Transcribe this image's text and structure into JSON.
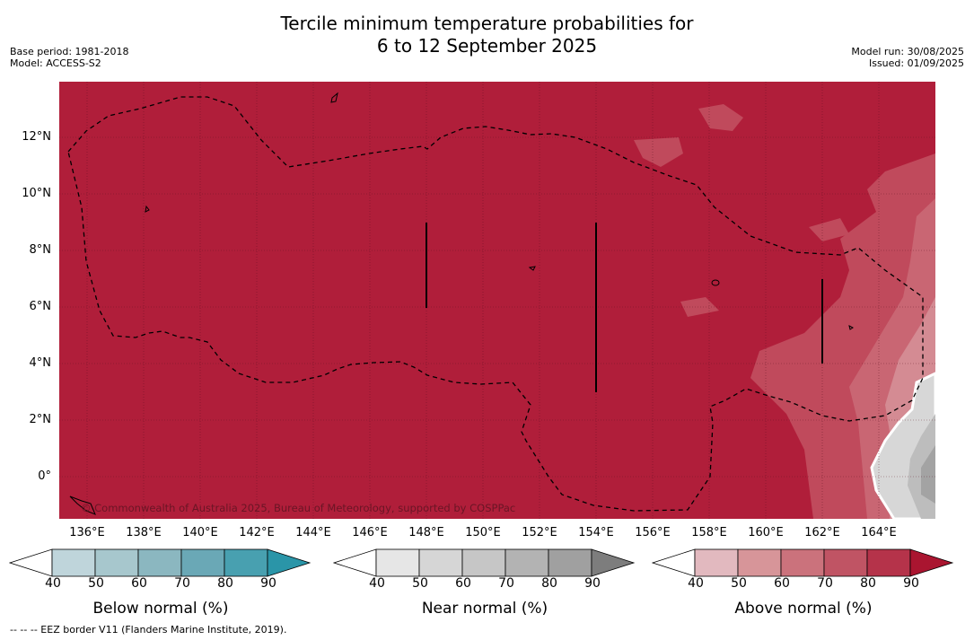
{
  "header": {
    "title_line1": "Tercile minimum temperature probabilities for",
    "title_line2": "6 to 12 September 2025",
    "base_period": "Base period: 1981-2018",
    "model": "Model: ACCESS-S2",
    "model_run": "Model run: 30/08/2025",
    "issued": "Issued: 01/09/2025"
  },
  "map": {
    "lat_labels": [
      "12°N",
      "10°N",
      "8°N",
      "6°N",
      "4°N",
      "2°N",
      "0°"
    ],
    "lon_labels": [
      "136°E",
      "138°E",
      "140°E",
      "142°E",
      "144°E",
      "146°E",
      "148°E",
      "150°E",
      "152°E",
      "154°E",
      "156°E",
      "158°E",
      "160°E",
      "162°E",
      "164°E"
    ],
    "copyright": "© Commonwealth of Australia 2025, Bureau of Meteorology, supported by COSPPac",
    "base_color": "#b01e3a"
  },
  "colorbars": [
    {
      "name": "below",
      "title": "Below normal (%)",
      "ticks": [
        "40",
        "50",
        "60",
        "70",
        "80",
        "90"
      ],
      "colors": [
        "#ffffff",
        "#bfd5db",
        "#a7c7cd",
        "#8bb7c0",
        "#6aa8b6",
        "#48a0b0",
        "#2a95a8"
      ]
    },
    {
      "name": "near",
      "title": "Near normal (%)",
      "ticks": [
        "40",
        "50",
        "60",
        "70",
        "80",
        "90"
      ],
      "colors": [
        "#ffffff",
        "#e6e6e6",
        "#d6d6d6",
        "#c6c6c6",
        "#b3b3b3",
        "#a0a0a0",
        "#7d7d7d"
      ]
    },
    {
      "name": "above",
      "title": "Above normal (%)",
      "ticks": [
        "40",
        "50",
        "60",
        "70",
        "80",
        "90"
      ],
      "colors": [
        "#ffffff",
        "#e2b9bf",
        "#d79599",
        "#cb727c",
        "#c05464",
        "#b5334a",
        "#aa1530"
      ]
    }
  ],
  "footer": {
    "eez_note": "--  --  -- EEZ border V11 (Flanders Marine Institute, 2019)."
  }
}
